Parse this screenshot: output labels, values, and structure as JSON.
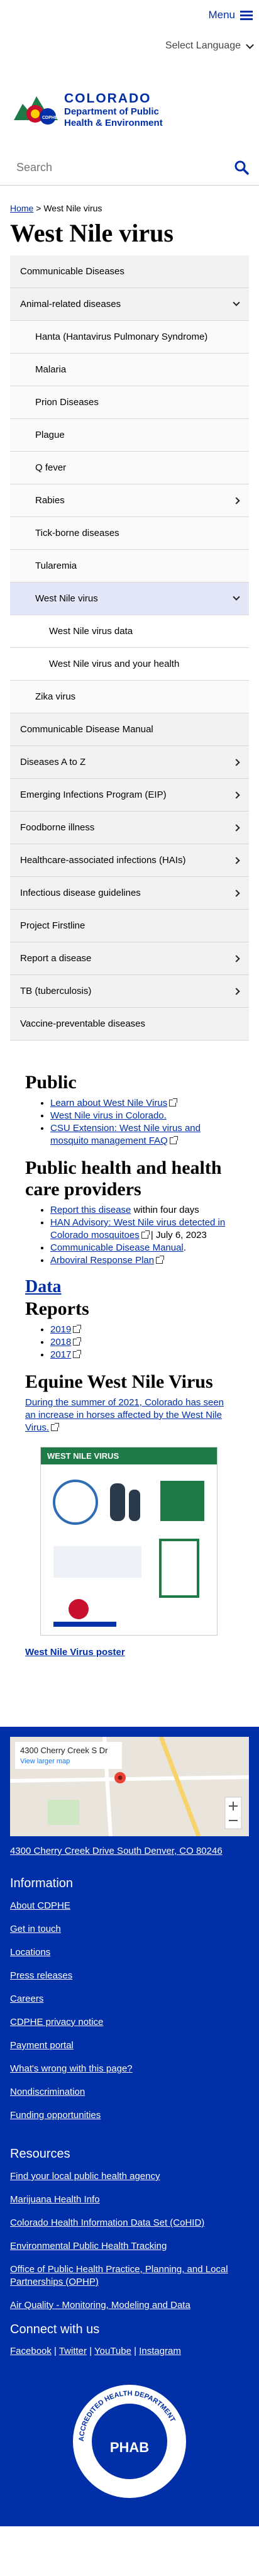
{
  "header": {
    "menu_label": "Menu",
    "language_label": "Select Language",
    "logo": {
      "line1": "COLORADO",
      "line2": "Department of Public",
      "line3": "Health & Environment",
      "badge": "CDPHE"
    },
    "search_placeholder": "Search"
  },
  "breadcrumb": {
    "home": "Home",
    "separator": ">",
    "current": "West Nile virus"
  },
  "page_title": "West Nile virus",
  "nav": [
    {
      "label": "Communicable Diseases",
      "level": 1,
      "icon": ""
    },
    {
      "label": "Animal-related diseases",
      "level": 1,
      "icon": "down"
    },
    {
      "label": "Hanta (Hantavirus Pulmonary Syndrome)",
      "level": 2,
      "icon": ""
    },
    {
      "label": "Malaria",
      "level": 2,
      "icon": ""
    },
    {
      "label": "Prion Diseases",
      "level": 2,
      "icon": ""
    },
    {
      "label": "Plague",
      "level": 2,
      "icon": ""
    },
    {
      "label": "Q fever",
      "level": 2,
      "icon": ""
    },
    {
      "label": "Rabies",
      "level": 2,
      "icon": "right"
    },
    {
      "label": "Tick-borne diseases",
      "level": 2,
      "icon": ""
    },
    {
      "label": "Tularemia",
      "level": 2,
      "icon": ""
    },
    {
      "label": "West Nile virus",
      "level": 2,
      "icon": "down",
      "active": true
    },
    {
      "label": "West Nile virus data",
      "level": 3,
      "icon": ""
    },
    {
      "label": "West Nile virus and your health",
      "level": 3,
      "icon": ""
    },
    {
      "label": "Zika virus",
      "level": 2,
      "icon": ""
    },
    {
      "label": "Communicable Disease Manual",
      "level": 1,
      "icon": ""
    },
    {
      "label": "Diseases A to Z",
      "level": 1,
      "icon": "right"
    },
    {
      "label": "Emerging Infections Program (EIP)",
      "level": 1,
      "icon": "right"
    },
    {
      "label": "Foodborne illness",
      "level": 1,
      "icon": "right"
    },
    {
      "label": "Healthcare-associated infections (HAIs)",
      "level": 1,
      "icon": "right"
    },
    {
      "label": "Infectious disease guidelines",
      "level": 1,
      "icon": "right"
    },
    {
      "label": "Project Firstline",
      "level": 1,
      "icon": ""
    },
    {
      "label": "Report a disease",
      "level": 1,
      "icon": "right"
    },
    {
      "label": "TB (tuberculosis)",
      "level": 1,
      "icon": "right"
    },
    {
      "label": "Vaccine-preventable diseases",
      "level": 1,
      "icon": ""
    }
  ],
  "public": {
    "heading": "Public",
    "links": [
      "Learn about West Nile Virus",
      "West Nile virus in Colorado.",
      "CSU Extension: West Nile virus and mosquito management FAQ"
    ]
  },
  "providers": {
    "heading": "Public health and health care providers",
    "item1_link": "Report this disease",
    "item1_suffix": " within four days",
    "item2_link": "HAN Advisory: West Nile virus detected in Colorado mosquitoes",
    "item2_suffix": " | July 6, 2023",
    "item3_link": "Communicable Disease Manual",
    "item3_suffix": ".",
    "item4_link": "Arboviral Response Plan"
  },
  "data_link": "Data",
  "reports": {
    "heading": "Reports",
    "years": [
      "2019",
      "2018",
      "2017"
    ]
  },
  "equine": {
    "heading": "Equine West Nile Virus",
    "link": "During the summer of 2021, Colorado has seen an increase in horses affected by the West Nile Virus."
  },
  "poster": {
    "header_text": "WEST NILE VIRUS",
    "link": "West Nile Virus poster"
  },
  "footer": {
    "map_title": "4300 Cherry Creek S Dr",
    "map_view_larger": "View larger map",
    "address": "4300 Cherry Creek Drive South Denver, CO 80246",
    "info_heading": "Information",
    "info_links": [
      "About CDPHE",
      "Get in touch",
      "Locations",
      "Press releases",
      "Careers",
      "CDPHE privacy notice",
      "Payment portal",
      "What's wrong with this page?",
      "Nondiscrimination",
      "Funding opportunities"
    ],
    "resources_heading": "Resources",
    "resource_links": [
      "Find your local public health agency",
      "Marijuana Health Info",
      "Colorado Health Information Data Set (CoHID)",
      "Environmental Public Health Tracking",
      "Office of Public Health Practice, Planning, and Local Partnerships (OPHP)",
      "Air Quality - Monitoring, Modeling and Data"
    ],
    "connect_heading": "Connect with us",
    "social": [
      "Facebook",
      "Twitter",
      "YouTube",
      "Instagram"
    ],
    "badge_text": "ACCREDITED HEALTH DEPARTMENT",
    "badge_mark": "PHAB"
  },
  "colors": {
    "brand_blue": "#002fa7",
    "nav_bg": "#f2f2f2",
    "active_bg": "#e4e7f7",
    "poster_green": "#1e7b47"
  }
}
